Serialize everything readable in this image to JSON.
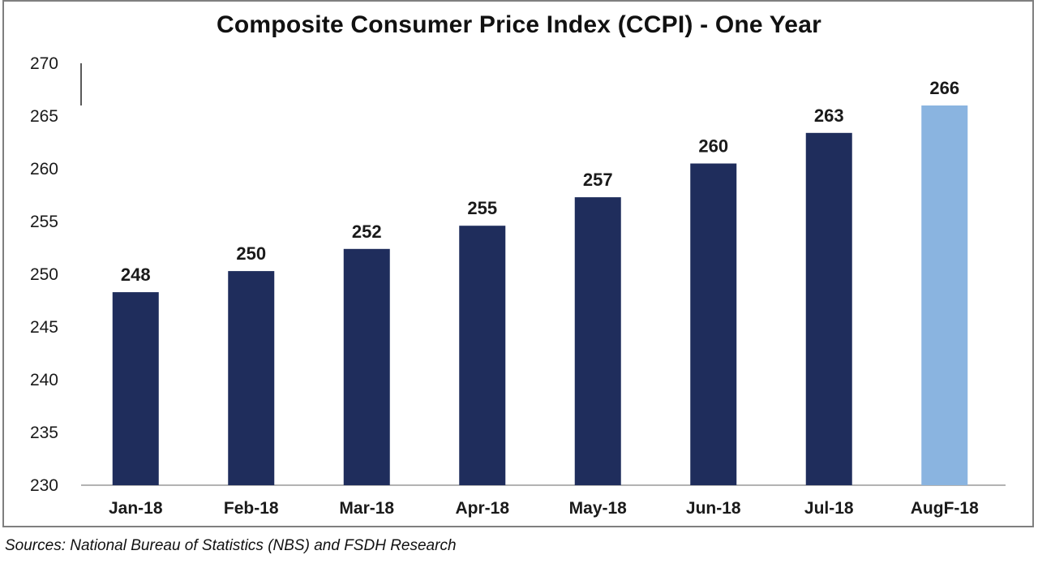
{
  "chart_data": {
    "type": "bar",
    "title": "Composite Consumer Price Index (CCPI) - One Year",
    "categories": [
      "Jan-18",
      "Feb-18",
      "Mar-18",
      "Apr-18",
      "May-18",
      "Jun-18",
      "Jul-18",
      "AugF-18"
    ],
    "values": [
      248.3,
      250.3,
      252.4,
      254.6,
      257.3,
      260.5,
      263.4,
      266.0
    ],
    "data_labels": [
      "248",
      "250",
      "252",
      "255",
      "257",
      "260",
      "263",
      "266"
    ],
    "bar_colors": [
      "#1f2d5c",
      "#1f2d5c",
      "#1f2d5c",
      "#1f2d5c",
      "#1f2d5c",
      "#1f2d5c",
      "#1f2d5c",
      "#8ab4e0"
    ],
    "ylim": [
      230,
      270
    ],
    "yticks": [
      "230",
      "235",
      "240",
      "245",
      "250",
      "255",
      "260",
      "265",
      "270"
    ],
    "xlabel": "",
    "ylabel": "",
    "grid": false,
    "legend": "none"
  },
  "source": "Sources: National Bureau of Statistics (NBS) and FSDH Research"
}
